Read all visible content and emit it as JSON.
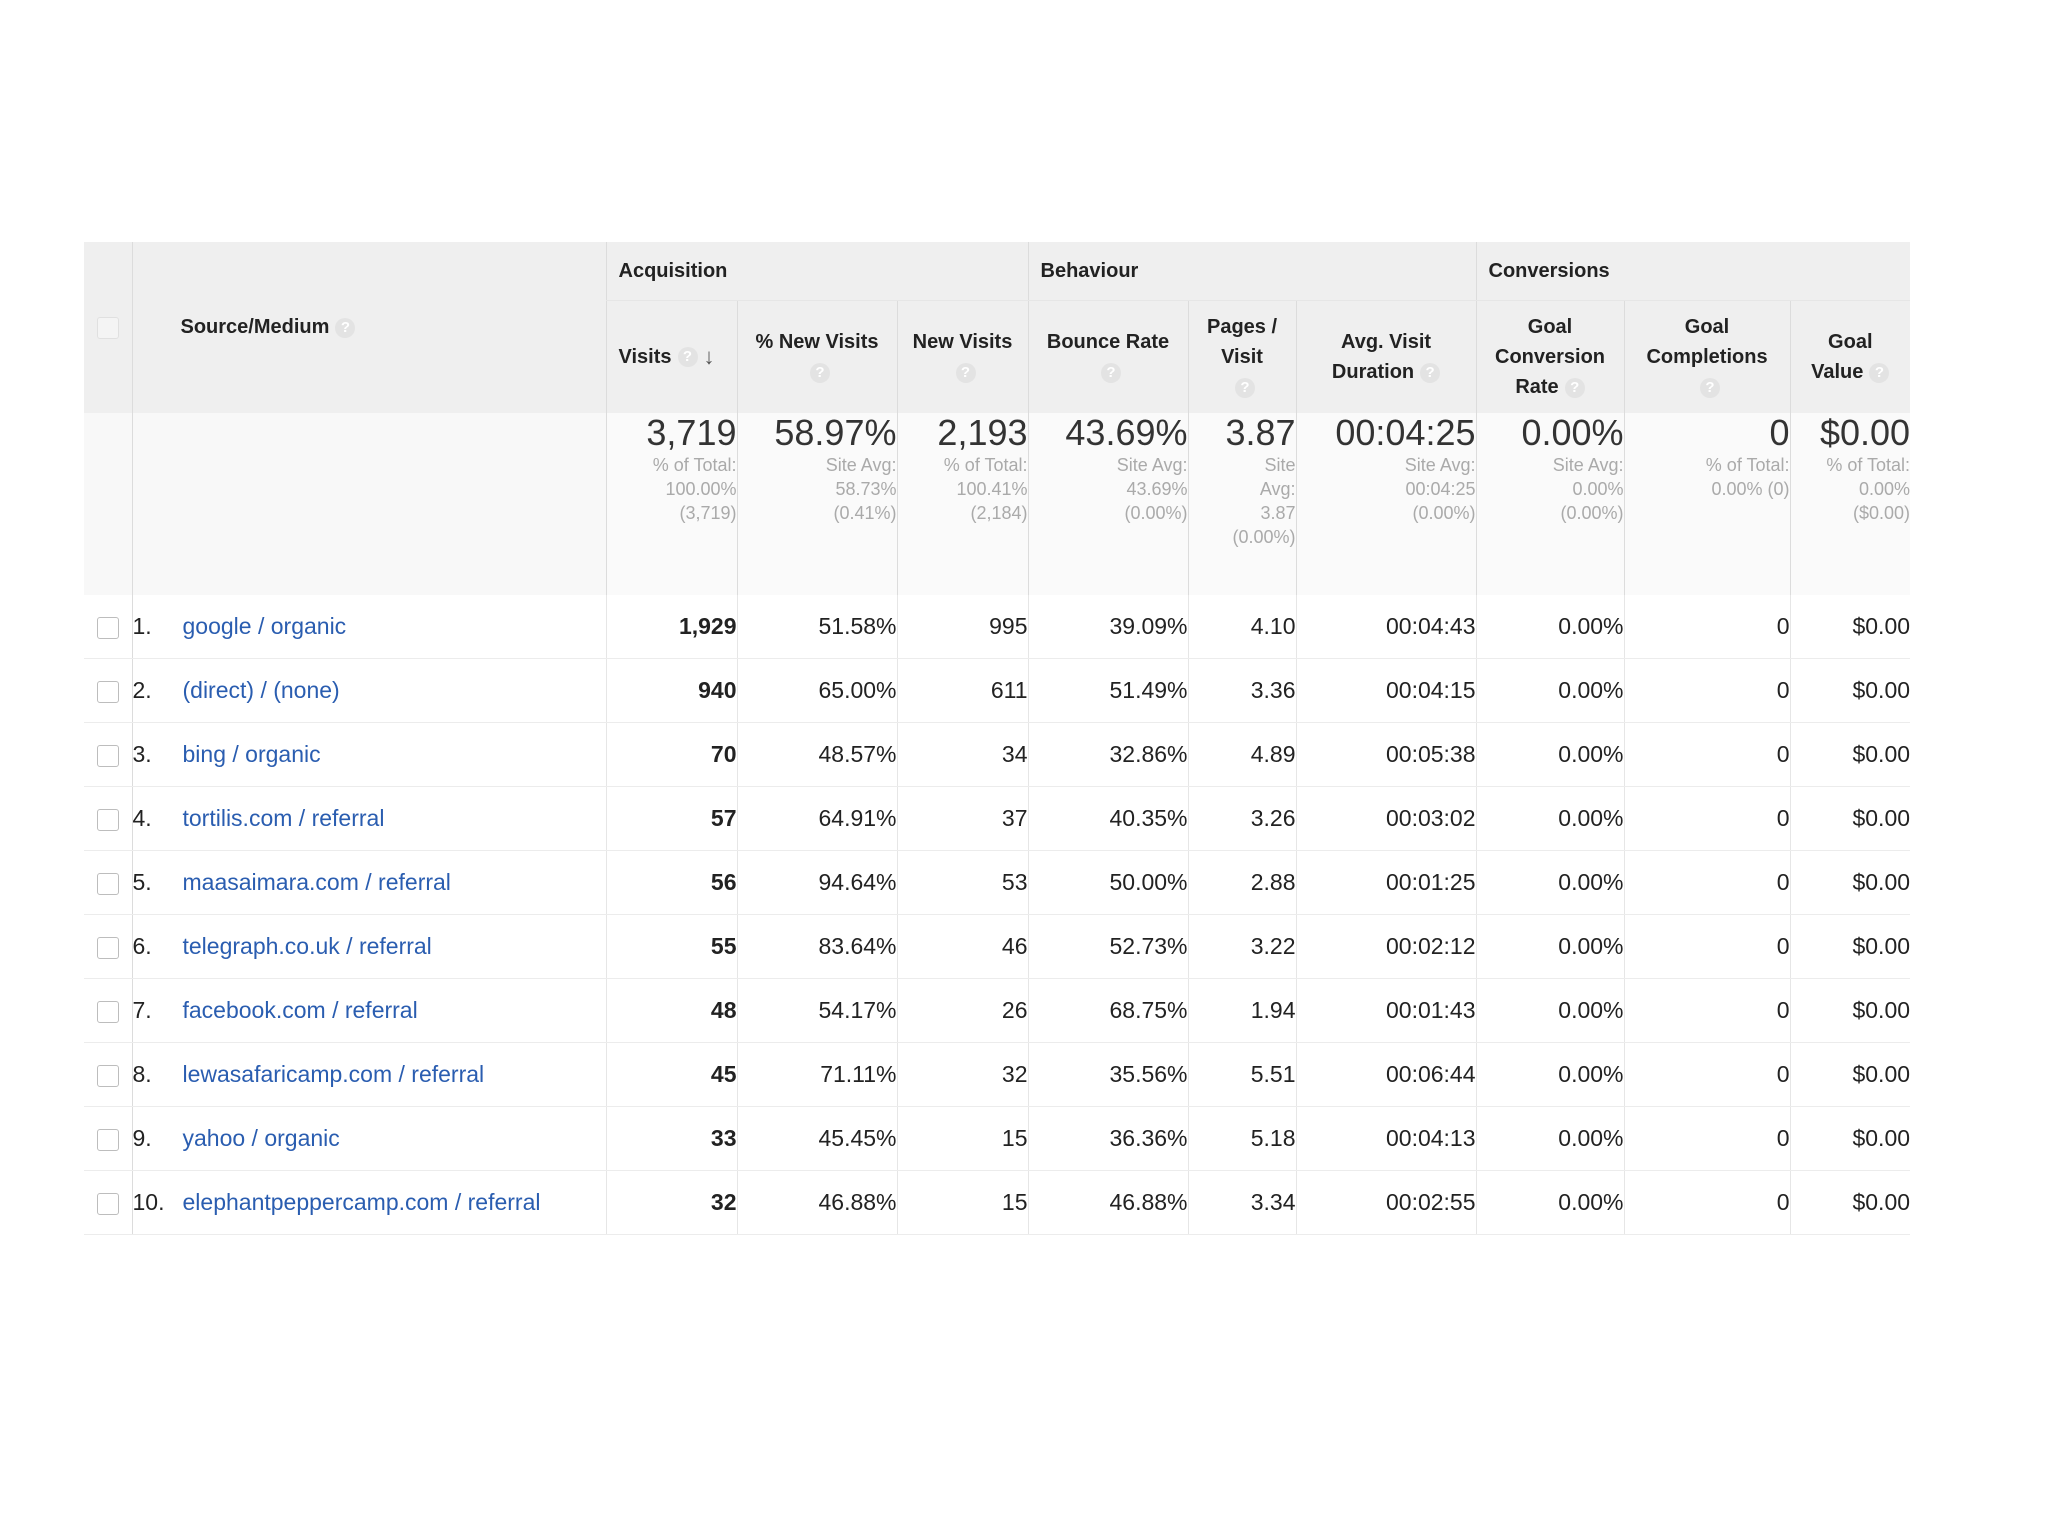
{
  "groups": {
    "acquisition": "Acquisition",
    "behaviour": "Behaviour",
    "conversions": "Conversions"
  },
  "columns": {
    "source_medium": "Source/Medium",
    "visits": "Visits",
    "pct_new_visits": "% New Visits",
    "new_visits": "New Visits",
    "bounce_rate": "Bounce Rate",
    "pages_visit_1": "Pages /",
    "pages_visit_2": "Visit",
    "avg_duration_1": "Avg. Visit",
    "avg_duration_2": "Duration",
    "goal_conv_1": "Goal",
    "goal_conv_2": "Conversion",
    "goal_conv_3": "Rate",
    "goal_comp_1": "Goal",
    "goal_comp_2": "Completions",
    "goal_value_1": "Goal",
    "goal_value_2": "Value"
  },
  "icons": {
    "help": "?",
    "sort_down": "↓"
  },
  "totals": {
    "visits": {
      "value": "3,719",
      "sub1": "% of Total:",
      "sub2": "100.00%",
      "sub3": "(3,719)"
    },
    "pct_new_visits": {
      "value": "58.97%",
      "sub1": "Site Avg:",
      "sub2": "58.73%",
      "sub3": "(0.41%)"
    },
    "new_visits": {
      "value": "2,193",
      "sub1": "% of Total:",
      "sub2": "100.41%",
      "sub3": "(2,184)"
    },
    "bounce_rate": {
      "value": "43.69%",
      "sub1": "Site Avg:",
      "sub2": "43.69%",
      "sub3": "(0.00%)"
    },
    "pages_visit": {
      "value": "3.87",
      "sub1": "Site",
      "sub2": "Avg:",
      "sub3": "3.87",
      "sub4": "(0.00%)"
    },
    "avg_duration": {
      "value": "00:04:25",
      "sub1": "Site Avg:",
      "sub2": "00:04:25",
      "sub3": "(0.00%)"
    },
    "goal_conv_rate": {
      "value": "0.00%",
      "sub1": "Site Avg:",
      "sub2": "0.00%",
      "sub3": "(0.00%)"
    },
    "goal_completions": {
      "value": "0",
      "sub1": "% of Total:",
      "sub2": "0.00% (0)"
    },
    "goal_value": {
      "value": "$0.00",
      "sub1": "% of Total:",
      "sub2": "0.00%",
      "sub3": "($0.00)"
    }
  },
  "rows": [
    {
      "rank": "1.",
      "source": "google / organic",
      "visits": "1,929",
      "pct_new": "51.58%",
      "new": "995",
      "bounce": "39.09%",
      "pages": "4.10",
      "duration": "00:04:43",
      "conv": "0.00%",
      "comp": "0",
      "value": "$0.00"
    },
    {
      "rank": "2.",
      "source": "(direct) / (none)",
      "visits": "940",
      "pct_new": "65.00%",
      "new": "611",
      "bounce": "51.49%",
      "pages": "3.36",
      "duration": "00:04:15",
      "conv": "0.00%",
      "comp": "0",
      "value": "$0.00"
    },
    {
      "rank": "3.",
      "source": "bing / organic",
      "visits": "70",
      "pct_new": "48.57%",
      "new": "34",
      "bounce": "32.86%",
      "pages": "4.89",
      "duration": "00:05:38",
      "conv": "0.00%",
      "comp": "0",
      "value": "$0.00"
    },
    {
      "rank": "4.",
      "source": "tortilis.com / referral",
      "visits": "57",
      "pct_new": "64.91%",
      "new": "37",
      "bounce": "40.35%",
      "pages": "3.26",
      "duration": "00:03:02",
      "conv": "0.00%",
      "comp": "0",
      "value": "$0.00"
    },
    {
      "rank": "5.",
      "source": "maasaimara.com / referral",
      "visits": "56",
      "pct_new": "94.64%",
      "new": "53",
      "bounce": "50.00%",
      "pages": "2.88",
      "duration": "00:01:25",
      "conv": "0.00%",
      "comp": "0",
      "value": "$0.00"
    },
    {
      "rank": "6.",
      "source": "telegraph.co.uk / referral",
      "visits": "55",
      "pct_new": "83.64%",
      "new": "46",
      "bounce": "52.73%",
      "pages": "3.22",
      "duration": "00:02:12",
      "conv": "0.00%",
      "comp": "0",
      "value": "$0.00"
    },
    {
      "rank": "7.",
      "source": "facebook.com / referral",
      "visits": "48",
      "pct_new": "54.17%",
      "new": "26",
      "bounce": "68.75%",
      "pages": "1.94",
      "duration": "00:01:43",
      "conv": "0.00%",
      "comp": "0",
      "value": "$0.00"
    },
    {
      "rank": "8.",
      "source": "lewasafaricamp.com / referral",
      "visits": "45",
      "pct_new": "71.11%",
      "new": "32",
      "bounce": "35.56%",
      "pages": "5.51",
      "duration": "00:06:44",
      "conv": "0.00%",
      "comp": "0",
      "value": "$0.00"
    },
    {
      "rank": "9.",
      "source": "yahoo / organic",
      "visits": "33",
      "pct_new": "45.45%",
      "new": "15",
      "bounce": "36.36%",
      "pages": "5.18",
      "duration": "00:04:13",
      "conv": "0.00%",
      "comp": "0",
      "value": "$0.00"
    },
    {
      "rank": "10.",
      "source": "elephantpeppercamp.com / referral",
      "visits": "32",
      "pct_new": "46.88%",
      "new": "15",
      "bounce": "46.88%",
      "pages": "3.34",
      "duration": "00:02:55",
      "conv": "0.00%",
      "comp": "0",
      "value": "$0.00"
    }
  ]
}
